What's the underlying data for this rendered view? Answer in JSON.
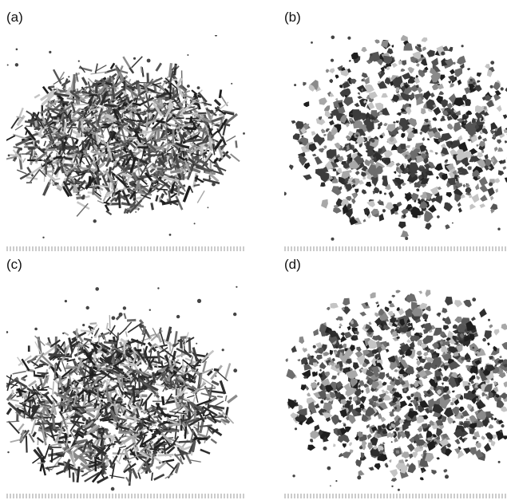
{
  "figure": {
    "panels": [
      {
        "label": "(a)",
        "material": "fine-particles",
        "tone": "#4a4a4a"
      },
      {
        "label": "(b)",
        "material": "granular-pieces",
        "tone": "#3c3c3c"
      },
      {
        "label": "(c)",
        "material": "fine-particles",
        "tone": "#2e2e2e"
      },
      {
        "label": "(d)",
        "material": "granular-pieces",
        "tone": "#5a5a5a"
      }
    ]
  }
}
